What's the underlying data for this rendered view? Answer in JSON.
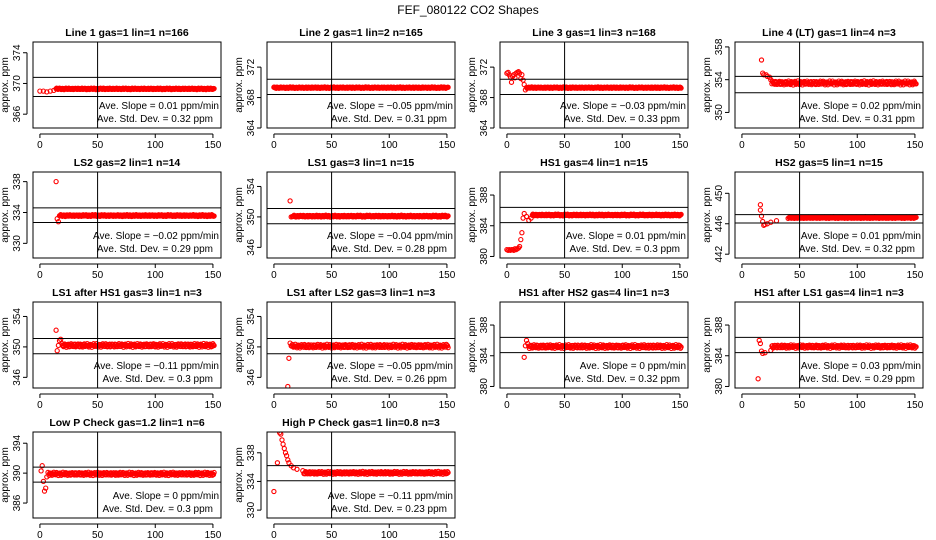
{
  "title": "FEF_080122  CO2 Shapes",
  "chart_data": [
    {
      "type": "scatter",
      "title": "Line 1 gas=1 lin=1 n=166",
      "ylabel": "approx. ppm",
      "xlim": [
        -6,
        157
      ],
      "ylim": [
        364.2,
        375.4
      ],
      "xticks": [
        0,
        50,
        100,
        150
      ],
      "yticks": [
        366,
        370,
        374
      ],
      "vline": 50,
      "hlines": [
        370.8,
        368.3
      ],
      "initial_points": [
        [
          0,
          369.0
        ],
        [
          3,
          369.0
        ],
        [
          6,
          368.9
        ],
        [
          9,
          369.0
        ],
        [
          12,
          369.1
        ]
      ],
      "steady": {
        "from": 14,
        "to": 151,
        "level": 369.3,
        "noise": 0.1
      },
      "annotations": {
        "slope": "Ave. Slope = 0.01  ppm/min",
        "sd": "Ave. Std. Dev. = 0.32  ppm"
      }
    },
    {
      "type": "scatter",
      "title": "Line 2 gas=1 lin=2 n=165",
      "ylabel": "approx. ppm",
      "xlim": [
        -6,
        157
      ],
      "ylim": [
        364,
        375.3
      ],
      "xticks": [
        0,
        50,
        100,
        150
      ],
      "yticks": [
        364,
        368,
        372
      ],
      "vline": 50,
      "hlines": [
        370.4,
        368.4
      ],
      "initial_points": [],
      "steady": {
        "from": 0,
        "to": 151,
        "level": 369.3,
        "noise": 0.1
      },
      "annotations": {
        "slope": "Ave. Slope = −0.05  ppm/min",
        "sd": "Ave. Std. Dev. = 0.31  ppm"
      }
    },
    {
      "type": "scatter",
      "title": "Line 3 gas=1 lin=3 n=168",
      "ylabel": "approx. ppm",
      "xlim": [
        -6,
        157
      ],
      "ylim": [
        364,
        375.3
      ],
      "xticks": [
        0,
        50,
        100,
        150
      ],
      "yticks": [
        364,
        368,
        372
      ],
      "vline": 50,
      "hlines": [
        370.4,
        368.4
      ],
      "initial_points": [
        [
          0,
          371.2
        ],
        [
          1,
          371.3
        ],
        [
          2,
          371.0
        ],
        [
          3,
          370.7
        ],
        [
          4,
          370.0
        ],
        [
          5,
          370.8
        ],
        [
          6,
          371.0
        ],
        [
          7,
          370.6
        ],
        [
          8,
          371.2
        ],
        [
          9,
          371.3
        ],
        [
          10,
          371.4
        ],
        [
          11,
          371.2
        ],
        [
          12,
          370.5
        ],
        [
          13,
          371.0
        ],
        [
          14,
          370.3
        ],
        [
          15,
          369.7
        ],
        [
          16,
          369.0
        ]
      ],
      "steady": {
        "from": 17,
        "to": 151,
        "level": 369.3,
        "noise": 0.1
      },
      "annotations": {
        "slope": "Ave. Slope = −0.03  ppm/min",
        "sd": "Ave. Std. Dev. = 0.33  ppm"
      }
    },
    {
      "type": "scatter",
      "title": "Line 4 (LT) gas=1 lin=4 n=3",
      "ylabel": "approx. ppm",
      "xlim": [
        -6,
        157
      ],
      "ylim": [
        348.1,
        358.6
      ],
      "xticks": [
        0,
        50,
        100,
        150
      ],
      "yticks": [
        350,
        354,
        358
      ],
      "vline": 50,
      "hlines": [
        354.4,
        352.4
      ],
      "initial_points": [
        [
          17,
          356.4
        ],
        [
          18,
          354.8
        ],
        [
          19,
          354.6
        ],
        [
          21,
          354.6
        ],
        [
          22,
          354.4
        ],
        [
          24,
          354.3
        ],
        [
          25,
          354.0
        ]
      ],
      "steady": {
        "from": 26,
        "to": 151,
        "level": 353.6,
        "noise": 0.25
      },
      "annotations": {
        "slope": "Ave. Slope = 0.02  ppm/min",
        "sd": "Ave. Std. Dev. = 0.31  ppm"
      }
    },
    {
      "type": "scatter",
      "title": "LS2 gas=2 lin=1 n=14",
      "ylabel": "approx. ppm",
      "xlim": [
        -6,
        157
      ],
      "ylim": [
        328.1,
        339.25
      ],
      "xticks": [
        0,
        50,
        100,
        150
      ],
      "yticks": [
        330,
        334,
        338
      ],
      "vline": 50,
      "hlines": [
        334.6,
        332.7
      ],
      "initial_points": [
        [
          14,
          338.0
        ],
        [
          15,
          333.2
        ],
        [
          16,
          332.8
        ]
      ],
      "steady": {
        "from": 17,
        "to": 151,
        "level": 333.6,
        "noise": 0.12
      },
      "annotations": {
        "slope": "Ave. Slope = −0.02  ppm/min",
        "sd": "Ave. Std. Dev. = 0.29  ppm"
      }
    },
    {
      "type": "scatter",
      "title": "LS1 gas=3 lin=1 n=15",
      "ylabel": "approx. ppm",
      "xlim": [
        -6,
        157
      ],
      "ylim": [
        344.6,
        355.9
      ],
      "xticks": [
        0,
        50,
        100,
        150
      ],
      "yticks": [
        346,
        350,
        354
      ],
      "vline": 50,
      "hlines": [
        351.1,
        349.1
      ],
      "initial_points": [
        [
          14,
          352.1
        ],
        [
          15,
          350.0
        ]
      ],
      "steady": {
        "from": 16,
        "to": 151,
        "level": 350.1,
        "noise": 0.12
      },
      "annotations": {
        "slope": "Ave. Slope = −0.04  ppm/min",
        "sd": "Ave. Std. Dev. = 0.28  ppm"
      }
    },
    {
      "type": "scatter",
      "title": "HS1 gas=4 lin=1 n=15",
      "ylabel": "approx. ppm",
      "xlim": [
        -6,
        157
      ],
      "ylim": [
        379.8,
        391
      ],
      "xticks": [
        0,
        50,
        100,
        150
      ],
      "yticks": [
        380,
        384,
        388
      ],
      "vline": 50,
      "hlines": [
        386.4,
        384.4
      ],
      "initial_points": [
        [
          0,
          380.9
        ],
        [
          1,
          380.8
        ],
        [
          2,
          380.9
        ],
        [
          3,
          380.8
        ],
        [
          4,
          380.9
        ],
        [
          5,
          380.9
        ],
        [
          6,
          380.8
        ],
        [
          7,
          381.0
        ],
        [
          8,
          380.9
        ],
        [
          9,
          381.0
        ],
        [
          10,
          381.1
        ],
        [
          11,
          381.3
        ],
        [
          12,
          382.2
        ],
        [
          13,
          383.1
        ],
        [
          14,
          385.0
        ],
        [
          15,
          385.6
        ],
        [
          17,
          385.2
        ],
        [
          19,
          384.7
        ],
        [
          21,
          385.0
        ]
      ],
      "steady": {
        "from": 22,
        "to": 151,
        "level": 385.4,
        "noise": 0.12
      },
      "annotations": {
        "slope": "Ave. Slope = 0.01  ppm/min",
        "sd": "Ave. Std. Dev. = 0.3  ppm"
      }
    },
    {
      "type": "scatter",
      "title": "HS2 gas=5 lin=1 n=15",
      "ylabel": "approx. ppm",
      "xlim": [
        -6,
        157
      ],
      "ylim": [
        441.5,
        452.8
      ],
      "xticks": [
        0,
        50,
        100,
        150
      ],
      "yticks": [
        442,
        446,
        450
      ],
      "vline": 50,
      "hlines": [
        447.2,
        446.1
      ],
      "initial_points": [
        [
          16,
          448.5
        ],
        [
          16,
          447.8
        ],
        [
          17,
          447.0
        ],
        [
          18,
          446.3
        ],
        [
          19,
          445.8
        ],
        [
          20,
          445.9
        ],
        [
          22,
          446.0
        ],
        [
          25,
          446.2
        ],
        [
          30,
          446.4
        ],
        [
          40,
          446.7
        ]
      ],
      "steady": {
        "from": 41,
        "to": 151,
        "level": 446.8,
        "noise": 0.1
      },
      "annotations": {
        "slope": "Ave. Slope = 0.01  ppm/min",
        "sd": "Ave. Std. Dev. = 0.32  ppm"
      }
    },
    {
      "type": "scatter",
      "title": "LS1 after HS1 gas=3 lin=1 n=3",
      "ylabel": "approx. ppm",
      "xlim": [
        -6,
        157
      ],
      "ylim": [
        344.6,
        355.9
      ],
      "xticks": [
        0,
        50,
        100,
        150
      ],
      "yticks": [
        346,
        350,
        354
      ],
      "vline": 50,
      "hlines": [
        351.1,
        349.1
      ],
      "initial_points": [
        [
          14,
          352.2
        ],
        [
          15,
          349.5
        ],
        [
          16,
          350.2
        ],
        [
          17,
          350.8
        ],
        [
          18,
          351.0
        ]
      ],
      "steady": {
        "from": 19,
        "to": 151,
        "level": 350.2,
        "noise": 0.25
      },
      "annotations": {
        "slope": "Ave. Slope = −0.11  ppm/min",
        "sd": "Ave. Std. Dev. = 0.3  ppm"
      }
    },
    {
      "type": "scatter",
      "title": "LS1 after LS2 gas=3 lin=1 n=3",
      "ylabel": "approx. ppm",
      "xlim": [
        -6,
        157
      ],
      "ylim": [
        344.6,
        355.9
      ],
      "xticks": [
        0,
        50,
        100,
        150
      ],
      "yticks": [
        346,
        350,
        354
      ],
      "vline": 50,
      "hlines": [
        351.1,
        349.1
      ],
      "initial_points": [
        [
          12,
          344.8
        ],
        [
          13,
          348.5
        ],
        [
          14,
          350.5
        ]
      ],
      "steady": {
        "from": 15,
        "to": 151,
        "level": 350.1,
        "noise": 0.25
      },
      "annotations": {
        "slope": "Ave. Slope = −0.05  ppm/min",
        "sd": "Ave. Std. Dev. = 0.26  ppm"
      }
    },
    {
      "type": "scatter",
      "title": "HS1 after HS2 gas=4 lin=1 n=3",
      "ylabel": "approx. ppm",
      "xlim": [
        -6,
        157
      ],
      "ylim": [
        379.8,
        391
      ],
      "xticks": [
        0,
        50,
        100,
        150
      ],
      "yticks": [
        380,
        384,
        388
      ],
      "vline": 50,
      "hlines": [
        386.4,
        384.4
      ],
      "initial_points": [
        [
          15,
          383.8
        ],
        [
          16,
          385.3
        ],
        [
          17,
          386.0
        ],
        [
          18,
          385.6
        ]
      ],
      "steady": {
        "from": 19,
        "to": 151,
        "level": 385.2,
        "noise": 0.25
      },
      "annotations": {
        "slope": "Ave. Slope = 0  ppm/min",
        "sd": "Ave. Std. Dev. = 0.32  ppm"
      }
    },
    {
      "type": "scatter",
      "title": "HS1 after LS1 gas=4 lin=1 n=3",
      "ylabel": "approx. ppm",
      "xlim": [
        -6,
        157
      ],
      "ylim": [
        379.8,
        391
      ],
      "xticks": [
        0,
        50,
        100,
        150
      ],
      "yticks": [
        380,
        384,
        388
      ],
      "vline": 50,
      "hlines": [
        386.4,
        384.4
      ],
      "initial_points": [
        [
          14,
          381.0
        ],
        [
          15,
          386.0
        ],
        [
          16,
          385.6
        ],
        [
          17,
          384.6
        ],
        [
          18,
          384.3
        ],
        [
          20,
          384.4
        ],
        [
          25,
          384.7
        ]
      ],
      "steady": {
        "from": 26,
        "to": 151,
        "level": 385.2,
        "noise": 0.22
      },
      "annotations": {
        "slope": "Ave. Slope = 0.03  ppm/min",
        "sd": "Ave. Std. Dev. = 0.29  ppm"
      }
    },
    {
      "type": "scatter",
      "title": "Low P Check gas=1.2 lin=1 n=6",
      "ylabel": "approx. ppm",
      "xlim": [
        -6,
        157
      ],
      "ylim": [
        384.0,
        395.5
      ],
      "xticks": [
        0,
        50,
        100,
        150
      ],
      "yticks": [
        386,
        390,
        394
      ],
      "vline": 50,
      "hlines": [
        390.8,
        388.8
      ],
      "initial_points": [
        [
          1,
          390.3
        ],
        [
          2,
          391.0
        ],
        [
          3,
          388.9
        ],
        [
          4,
          387.6
        ],
        [
          5,
          388.0
        ],
        [
          6,
          389.5
        ],
        [
          7,
          390.1
        ]
      ],
      "steady": {
        "from": 8,
        "to": 151,
        "level": 389.9,
        "noise": 0.22
      },
      "annotations": {
        "slope": "Ave. Slope = 0  ppm/min",
        "sd": "Ave. Std. Dev. = 0.3  ppm"
      }
    },
    {
      "type": "scatter",
      "title": "High P Check gas=1 lin=0.8 n=3",
      "ylabel": "approx. ppm",
      "xlim": [
        -6,
        157
      ],
      "ylim": [
        328.9,
        340.9
      ],
      "xticks": [
        0,
        50,
        100,
        150
      ],
      "yticks": [
        330,
        334,
        338
      ],
      "vline": 50,
      "hlines": [
        336.2,
        334.1
      ],
      "initial_points": [
        [
          0,
          332.6
        ],
        [
          3,
          336.6
        ],
        [
          5,
          340.8
        ],
        [
          6,
          340.6
        ],
        [
          7,
          339.8
        ],
        [
          8,
          339.2
        ],
        [
          9,
          338.6
        ],
        [
          10,
          338.0
        ],
        [
          11,
          337.6
        ],
        [
          12,
          337.0
        ],
        [
          13,
          336.6
        ],
        [
          15,
          336.2
        ],
        [
          17,
          335.9
        ],
        [
          20,
          335.7
        ],
        [
          25,
          335.5
        ]
      ],
      "steady": {
        "from": 26,
        "to": 151,
        "level": 335.2,
        "noise": 0.2
      },
      "annotations": {
        "slope": "Ave. Slope = −0.11  ppm/min",
        "sd": "Ave. Std. Dev. = 0.23  ppm"
      }
    }
  ],
  "colors": {
    "points": "#ff0000",
    "axes": "#000000"
  }
}
